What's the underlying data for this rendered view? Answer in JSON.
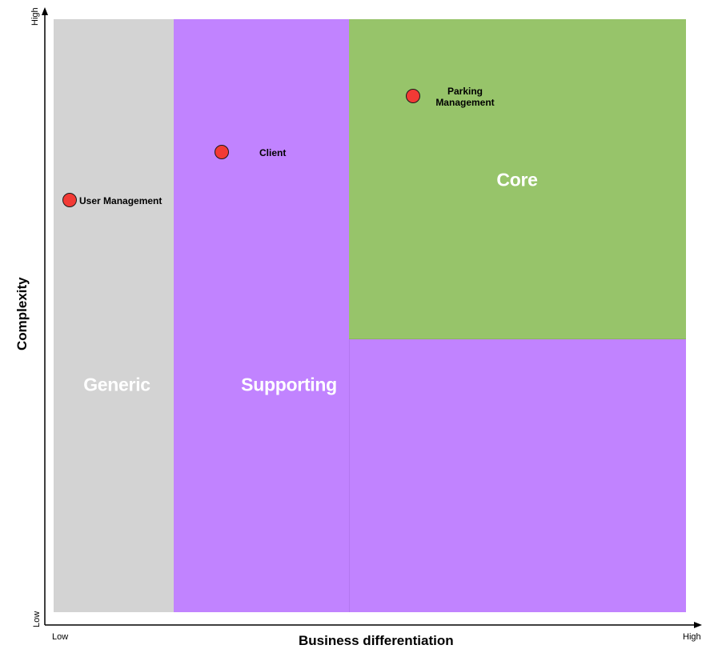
{
  "axes": {
    "x_title": "Business differentiation",
    "y_title": "Complexity",
    "x_low": "Low",
    "x_high": "High",
    "y_low": "Low",
    "y_high": "High"
  },
  "zones": [
    {
      "id": "generic",
      "label": "Generic",
      "color": "#d3d3d3"
    },
    {
      "id": "supporting",
      "label": "Supporting",
      "color": "#c183ff"
    },
    {
      "id": "core",
      "label": "Core",
      "color": "#97c46a"
    }
  ],
  "points": [
    {
      "id": "user-management",
      "label": "User Management",
      "zone": "generic",
      "color": "#f23a35"
    },
    {
      "id": "client",
      "label": "Client",
      "zone": "supporting",
      "color": "#f23a35"
    },
    {
      "id": "parking-management",
      "label_line1": "Parking",
      "label_line2": "Management",
      "zone": "core",
      "color": "#f23a35"
    }
  ]
}
